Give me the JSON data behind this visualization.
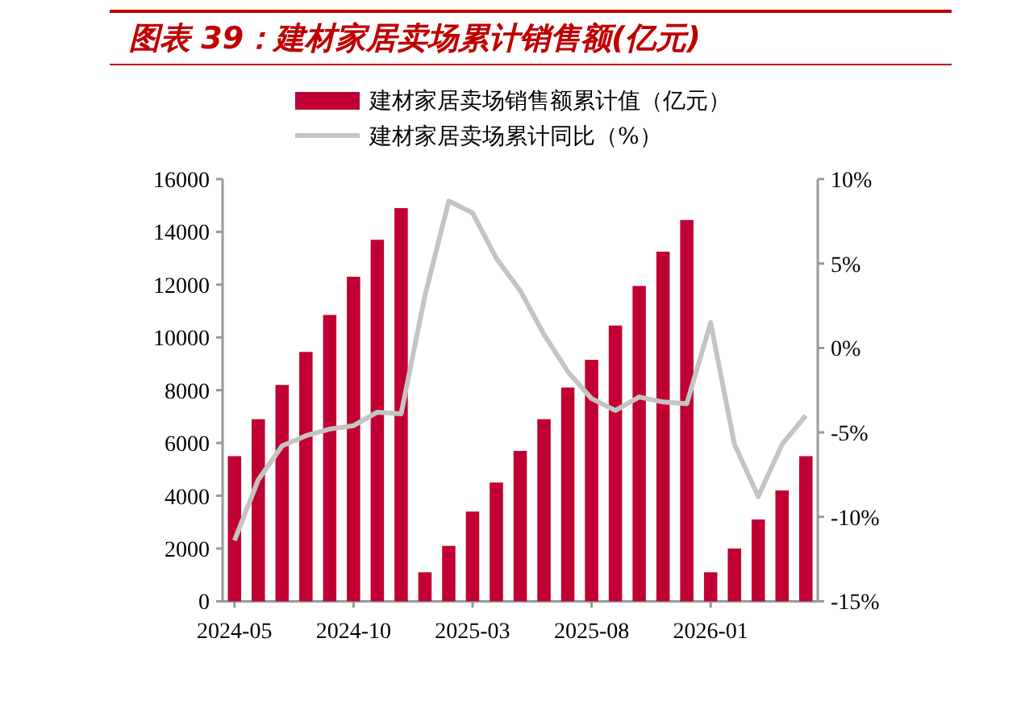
{
  "chart_data": {
    "type": "bar",
    "title": "图表 39：建材家居卖场累计销售额(亿元)",
    "categories": [
      "2024-05",
      null,
      null,
      null,
      null,
      "2024-10",
      null,
      null,
      null,
      null,
      "2025-03",
      null,
      null,
      null,
      null,
      "2025-08",
      null,
      null,
      null,
      null,
      "2026-01",
      null,
      null,
      null,
      null
    ],
    "series": [
      {
        "name": "建材家居卖场销售额累计值（亿元）",
        "color": "#c00032",
        "values": [
          5500,
          6900,
          8200,
          9450,
          10850,
          12300,
          13700,
          14900,
          1100,
          2100,
          3400,
          4500,
          5700,
          6900,
          8100,
          9150,
          10450,
          11950,
          13250,
          14450,
          1100,
          2000,
          3100,
          4200,
          5500
        ]
      },
      {
        "name": "建材家居卖场累计同比（%）",
        "type": "line",
        "axis": "y2",
        "color": "#c4c4c4",
        "values": [
          -11.4,
          -7.8,
          -5.8,
          -5.2,
          -4.8,
          -4.6,
          -3.8,
          -3.9,
          3.1,
          8.7,
          8.0,
          5.3,
          3.4,
          0.8,
          -1.4,
          -3.0,
          -3.7,
          -2.9,
          -3.2,
          -3.3,
          1.5,
          -5.7,
          -8.8,
          -5.7,
          -4.0
        ]
      }
    ],
    "ylim": [
      0,
      16000
    ],
    "yticks": [
      0,
      2000,
      4000,
      6000,
      8000,
      10000,
      12000,
      14000,
      16000
    ],
    "y2lim": [
      -15,
      10
    ],
    "y2ticks": [
      {
        "value": -15,
        "label": "-15%"
      },
      {
        "value": -10,
        "label": "-10%"
      },
      {
        "value": -5,
        "label": "-5%"
      },
      {
        "value": 0,
        "label": "0%"
      },
      {
        "value": 5,
        "label": "5%"
      },
      {
        "value": 10,
        "label": "10%"
      }
    ],
    "legend": "top",
    "grid": false
  }
}
